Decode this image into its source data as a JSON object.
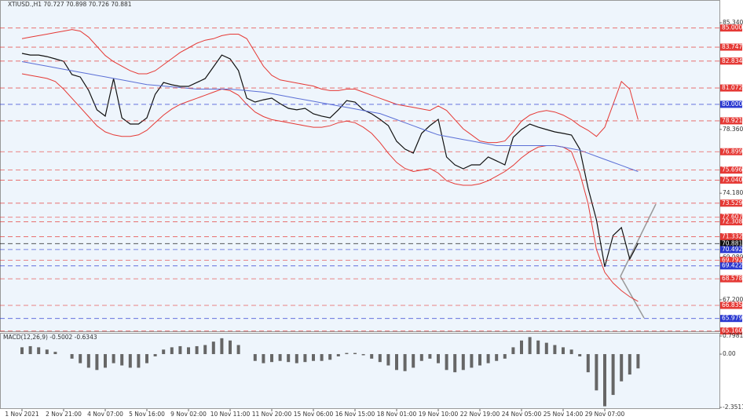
{
  "chart_data": [
    {
      "type": "line",
      "title": "XTIUSD.,H1 70.727 70.898 70.726 70.881",
      "categories": [
        "1 Nov 2021",
        null,
        null,
        null,
        null,
        "2 Nov 21:00",
        null,
        null,
        null,
        null,
        "4 Nov 07:00",
        null,
        null,
        null,
        null,
        "5 Nov 16:00",
        null,
        null,
        null,
        null,
        "9 Nov 02:00",
        null,
        null,
        null,
        null,
        "10 Nov 11:00",
        null,
        null,
        null,
        null,
        "11 Nov 20:00",
        null,
        null,
        null,
        null,
        "15 Nov 06:00",
        null,
        null,
        null,
        null,
        "16 Nov 15:00",
        null,
        null,
        null,
        null,
        "18 Nov 01:00",
        null,
        null,
        null,
        null,
        "19 Nov 10:00",
        null,
        null,
        null,
        null,
        "22 Nov 19:00",
        null,
        null,
        null,
        null,
        "24 Nov 05:00",
        null,
        null,
        null,
        null,
        "25 Nov 14:00",
        null,
        null,
        null,
        null,
        "29 Nov 07:00",
        null,
        null,
        null,
        null
      ],
      "series": [
        {
          "color": "#111111",
          "values": [
            83.34,
            83.23,
            83.23,
            83.13,
            82.98,
            82.82,
            81.95,
            81.79,
            80.92,
            79.64,
            79.23,
            81.69,
            79.12,
            78.71,
            78.71,
            79.12,
            80.66,
            81.43,
            81.28,
            81.18,
            81.18,
            81.43,
            81.69,
            82.46,
            83.23,
            82.98,
            82.21,
            80.41,
            80.15,
            80.3,
            80.41,
            80.05,
            79.74,
            79.64,
            79.74,
            79.38,
            79.23,
            79.12,
            79.64,
            80.25,
            80.15,
            79.64,
            79.38,
            79.02,
            78.61,
            77.58,
            77.07,
            76.81,
            78.1,
            78.61,
            79.02,
            76.55,
            76.04,
            75.78,
            76.04,
            76.04,
            76.55,
            76.3,
            76.04,
            77.84,
            78.35,
            78.71,
            78.51,
            78.35,
            78.2,
            78.1,
            77.99,
            77.07,
            74.5,
            72.44,
            69.36,
            71.41,
            71.93,
            69.87,
            70.9
          ]
        },
        {
          "color": "#e53935",
          "values": [
            84.3,
            84.4,
            84.5,
            84.6,
            84.7,
            84.8,
            84.9,
            84.8,
            84.4,
            83.8,
            83.2,
            82.8,
            82.5,
            82.2,
            82.0,
            82.0,
            82.2,
            82.6,
            83.0,
            83.4,
            83.7,
            84.0,
            84.2,
            84.3,
            84.5,
            84.6,
            84.6,
            84.3,
            83.4,
            82.5,
            81.9,
            81.6,
            81.5,
            81.4,
            81.3,
            81.2,
            81.0,
            80.9,
            80.9,
            81.0,
            81.0,
            80.8,
            80.6,
            80.4,
            80.2,
            80.0,
            79.9,
            79.8,
            79.7,
            79.6,
            79.9,
            79.6,
            79.0,
            78.4,
            78.0,
            77.6,
            77.5,
            77.5,
            77.6,
            78.2,
            78.9,
            79.3,
            79.5,
            79.6,
            79.5,
            79.3,
            79.0,
            78.6,
            78.3,
            77.9,
            78.5,
            80.0,
            81.5,
            81.0,
            79.0
          ]
        },
        {
          "color": "#e53935",
          "values": [
            82.0,
            81.9,
            81.8,
            81.7,
            81.5,
            81.0,
            80.4,
            79.8,
            79.2,
            78.6,
            78.2,
            78.0,
            77.9,
            77.9,
            78.0,
            78.3,
            78.8,
            79.3,
            79.7,
            80.0,
            80.2,
            80.4,
            80.6,
            80.8,
            81.0,
            80.9,
            80.6,
            80.0,
            79.5,
            79.2,
            79.0,
            78.9,
            78.8,
            78.7,
            78.6,
            78.5,
            78.5,
            78.6,
            78.8,
            78.9,
            78.8,
            78.5,
            78.1,
            77.5,
            76.8,
            76.2,
            75.8,
            75.6,
            75.7,
            75.8,
            75.5,
            75.0,
            74.8,
            74.7,
            74.7,
            74.8,
            75.0,
            75.3,
            75.6,
            76.0,
            76.5,
            76.9,
            77.2,
            77.3,
            77.3,
            77.2,
            76.9,
            75.5,
            73.5,
            70.5,
            69.0,
            68.3,
            67.8,
            67.4,
            67.1
          ]
        },
        {
          "color": "#5b6fd6",
          "values": [
            82.8,
            82.7,
            82.6,
            82.5,
            82.4,
            82.3,
            82.2,
            82.1,
            82.0,
            81.9,
            81.8,
            81.7,
            81.6,
            81.5,
            81.4,
            81.3,
            81.25,
            81.2,
            81.15,
            81.1,
            81.05,
            81.0,
            81.0,
            81.0,
            81.0,
            81.0,
            80.95,
            80.9,
            80.85,
            80.8,
            80.7,
            80.6,
            80.5,
            80.4,
            80.3,
            80.2,
            80.1,
            80.0,
            79.9,
            79.8,
            79.7,
            79.6,
            79.5,
            79.4,
            79.2,
            79.0,
            78.8,
            78.6,
            78.4,
            78.2,
            78.0,
            77.9,
            77.8,
            77.7,
            77.6,
            77.5,
            77.4,
            77.3,
            77.3,
            77.3,
            77.3,
            77.3,
            77.3,
            77.3,
            77.3,
            77.2,
            77.1,
            77.0,
            76.8,
            76.6,
            76.4,
            76.2,
            76.0,
            75.8,
            75.6
          ]
        }
      ],
      "ylim": [
        65.14,
        86.32
      ],
      "yticks": [
        {
          "value": 85.34,
          "label": "85.340"
        },
        {
          "value": 78.36,
          "label": "78.360"
        },
        {
          "value": 74.18,
          "label": "74.180"
        },
        {
          "value": 69.98,
          "label": "69.980"
        },
        {
          "value": 67.2,
          "label": "67.200"
        }
      ],
      "levels": [
        {
          "value": 85.0,
          "label": "85.000",
          "color": "#e53935"
        },
        {
          "value": 83.747,
          "label": "83.747",
          "color": "#e53935"
        },
        {
          "value": 82.834,
          "label": "82.834",
          "color": "#e53935"
        },
        {
          "value": 81.072,
          "label": "81.072",
          "color": "#e53935"
        },
        {
          "value": 80.0,
          "label": "80.000",
          "color": "#2b39d1"
        },
        {
          "value": 78.921,
          "label": "78.921",
          "color": "#e53935"
        },
        {
          "value": 76.899,
          "label": "76.899",
          "color": "#e53935"
        },
        {
          "value": 75.696,
          "label": "75.696",
          "color": "#e53935"
        },
        {
          "value": 75.04,
          "label": "75.040",
          "color": "#e53935"
        },
        {
          "value": 73.529,
          "label": "73.529",
          "color": "#e53935"
        },
        {
          "value": 72.607,
          "label": "72.607",
          "color": "#e53935"
        },
        {
          "value": 72.308,
          "label": "72.308",
          "color": "#e53935"
        },
        {
          "value": 71.332,
          "label": "71.332",
          "color": "#e53935"
        },
        {
          "value": 70.881,
          "label": "70.881",
          "color": "#111111"
        },
        {
          "value": 70.492,
          "label": "70.492",
          "color": "#2b39d1"
        },
        {
          "value": 69.792,
          "label": "69.792",
          "color": "#e53935"
        },
        {
          "value": 69.422,
          "label": "69.422",
          "color": "#2b39d1"
        },
        {
          "value": 68.578,
          "label": "68.578",
          "color": "#e53935"
        },
        {
          "value": 66.835,
          "label": "66.835",
          "color": "#e53935"
        },
        {
          "value": 65.979,
          "label": "65.979",
          "color": "#2b39d1"
        },
        {
          "value": 65.16,
          "label": "65.160",
          "color": "#e53935"
        }
      ]
    },
    {
      "type": "bar",
      "title": "MACD(12,26,9) -0.5002 -0.6343",
      "color": "#666666",
      "values": [
        0.3,
        0.35,
        0.3,
        0.2,
        0.1,
        0.0,
        -0.2,
        -0.4,
        -0.6,
        -0.7,
        -0.6,
        -0.4,
        -0.5,
        -0.6,
        -0.6,
        -0.4,
        -0.1,
        0.2,
        0.3,
        0.35,
        0.3,
        0.35,
        0.4,
        0.55,
        0.7,
        0.6,
        0.4,
        0.0,
        -0.3,
        -0.4,
        -0.35,
        -0.3,
        -0.35,
        -0.4,
        -0.35,
        -0.3,
        -0.3,
        -0.25,
        -0.1,
        0.05,
        0.05,
        -0.05,
        -0.2,
        -0.35,
        -0.5,
        -0.7,
        -0.75,
        -0.6,
        -0.3,
        -0.2,
        -0.4,
        -0.7,
        -0.8,
        -0.7,
        -0.6,
        -0.5,
        -0.4,
        -0.3,
        -0.2,
        0.3,
        0.6,
        0.75,
        0.6,
        0.5,
        0.4,
        0.3,
        0.2,
        -0.1,
        -0.8,
        -1.6,
        -2.3,
        -1.8,
        -1.2,
        -0.9,
        -0.63
      ],
      "ylim": [
        -2.3511,
        0.7981
      ],
      "yticks": [
        0.7981,
        {
          "value": 0,
          "label": "0.00"
        },
        -2.3511
      ]
    }
  ]
}
